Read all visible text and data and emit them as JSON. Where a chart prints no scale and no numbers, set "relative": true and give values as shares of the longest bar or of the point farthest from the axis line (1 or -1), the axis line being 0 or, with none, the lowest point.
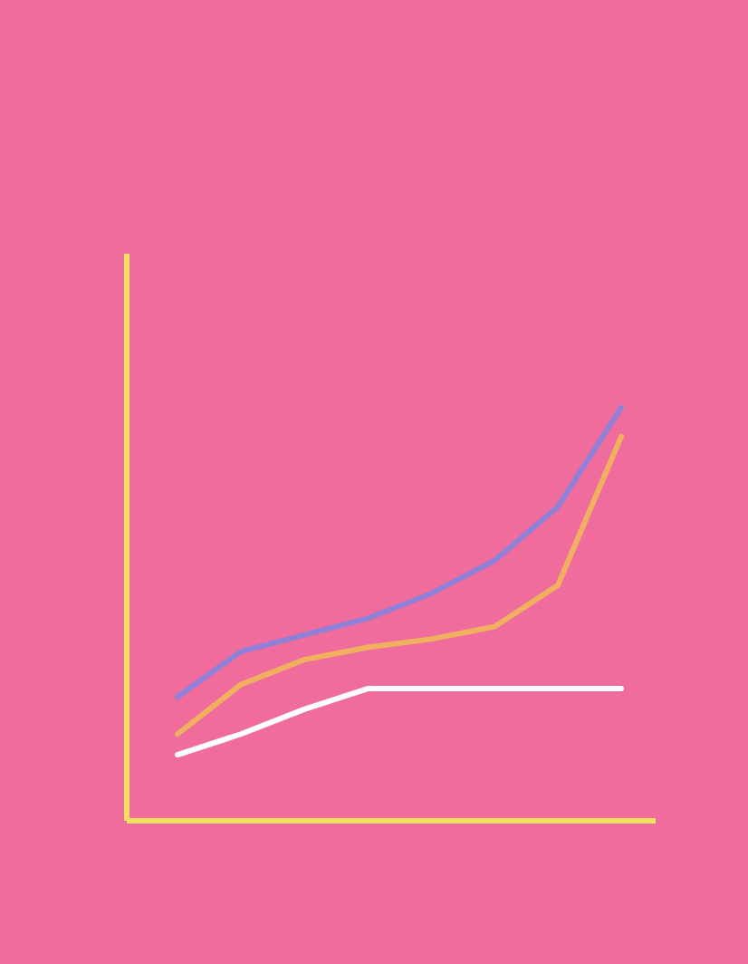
{
  "chart_data": {
    "type": "line",
    "relative": true,
    "line_style": "solid",
    "categories": [
      null,
      null,
      null,
      null,
      null,
      null,
      null,
      null
    ],
    "series": [
      {
        "color": "#9080d8",
        "values": [
          0.3,
          0.41,
          0.45,
          0.49,
          0.55,
          0.63,
          0.76,
          1
        ]
      },
      {
        "color": "#f0b060",
        "values": [
          0.21,
          0.33,
          0.39,
          0.42,
          0.44,
          0.47,
          0.57,
          0.93
        ]
      },
      {
        "color": "#ffffff",
        "values": [
          0.16,
          0.21,
          0.27,
          0.32,
          0.32,
          0.32,
          0.32,
          0.32
        ]
      }
    ]
  }
}
